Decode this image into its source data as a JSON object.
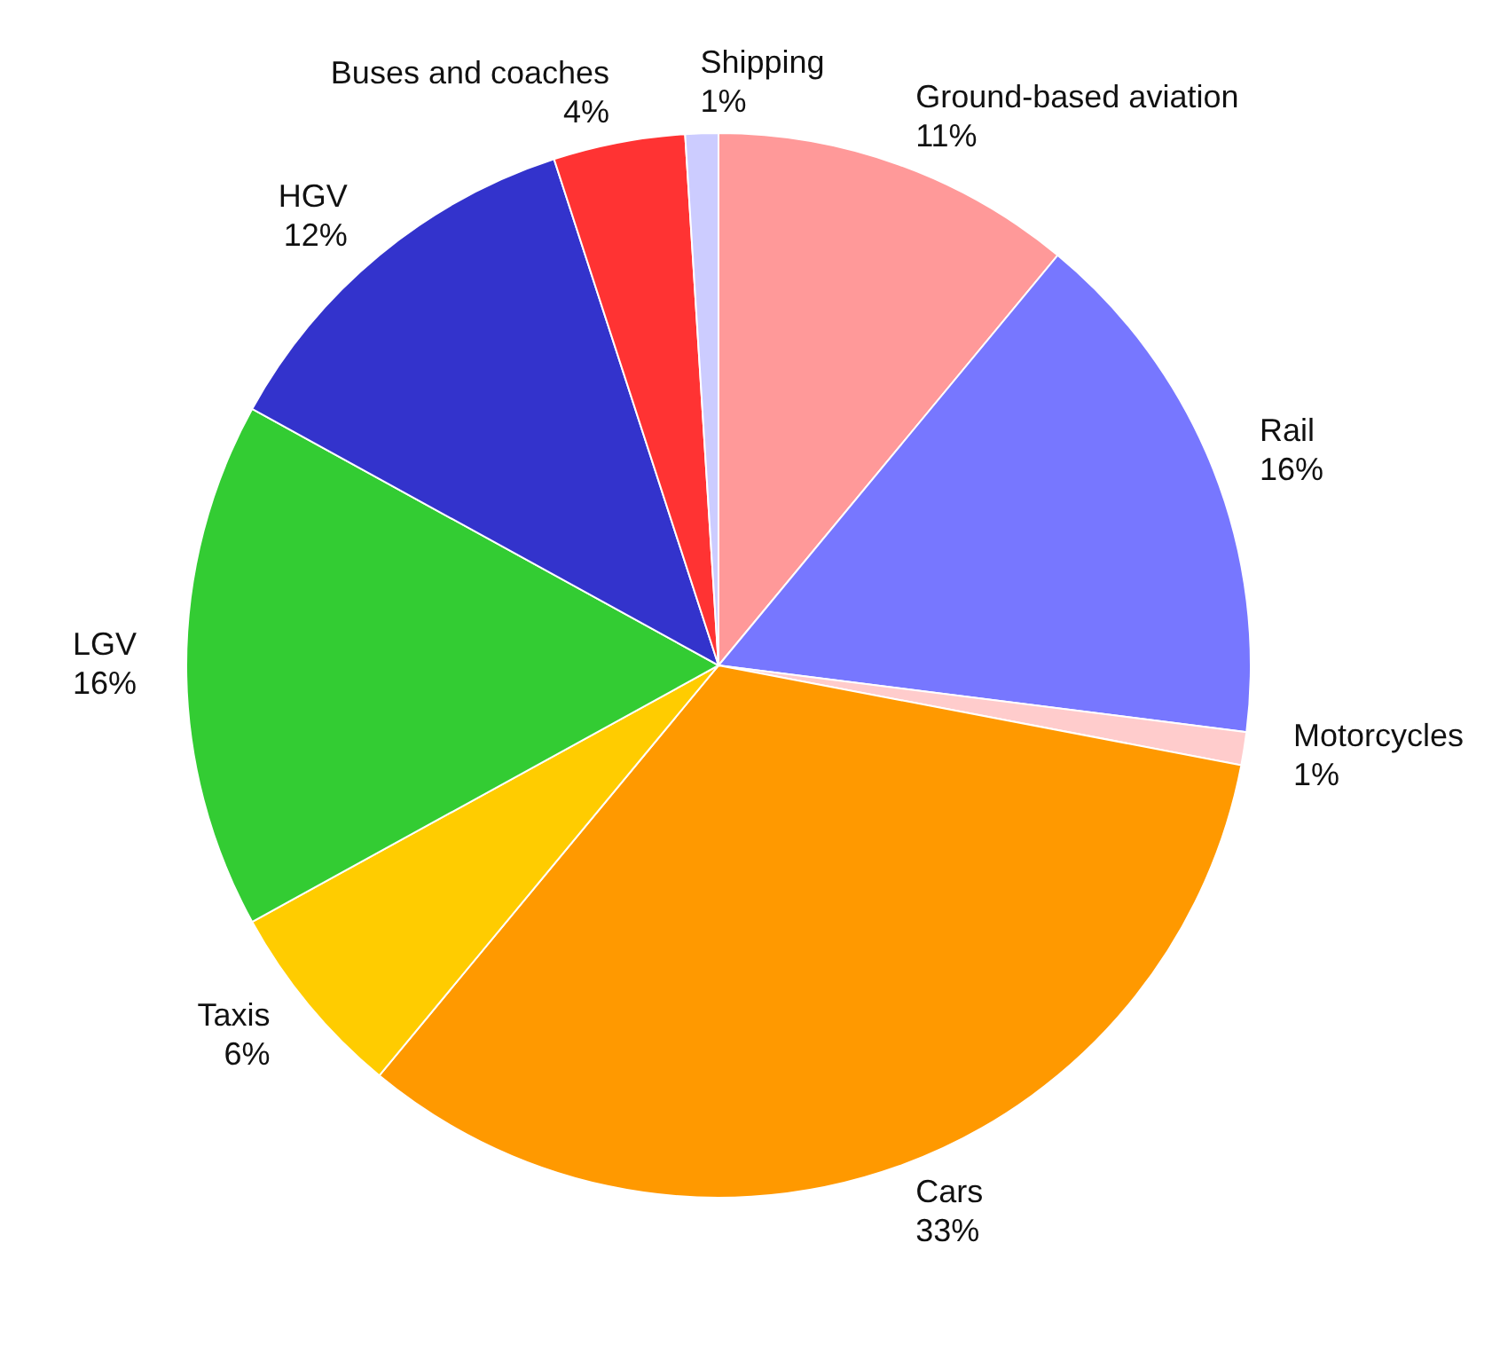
{
  "chart_data": {
    "type": "pie",
    "categories": [
      "Ground-based aviation",
      "Rail",
      "Motorcycles",
      "Cars",
      "Taxis",
      "LGV",
      "HGV",
      "Buses and coaches",
      "Shipping"
    ],
    "values": [
      11,
      16,
      1,
      33,
      6,
      16,
      12,
      4,
      1
    ],
    "value_labels": [
      "11%",
      "16%",
      "1%",
      "33%",
      "6%",
      "16%",
      "12%",
      "4%",
      "1%"
    ],
    "colors": [
      "#ff9999",
      "#7777ff",
      "#ffcccc",
      "#ff9900",
      "#ffcc00",
      "#33cc33",
      "#3333cc",
      "#ff3333",
      "#ccccff"
    ],
    "legend": false
  }
}
